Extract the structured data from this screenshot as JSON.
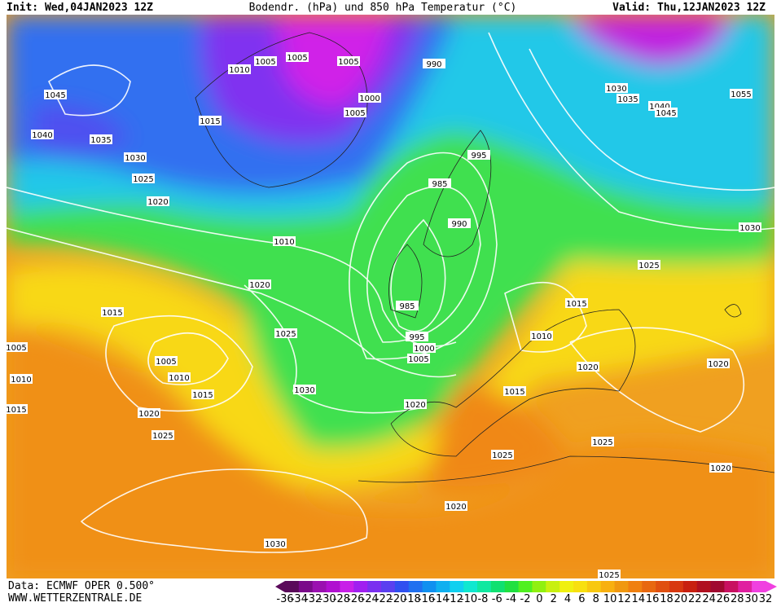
{
  "header": {
    "init": "Init: Wed,04JAN2023 12Z",
    "title": "Bodendr. (hPa) und 850 hPa Temperatur (°C)",
    "valid": "Valid: Thu,12JAN2023 12Z"
  },
  "isobar_labels": [
    "1045",
    "1040",
    "1035",
    "1030",
    "1025",
    "1020",
    "1005",
    "1010",
    "1005",
    "1015",
    "1005",
    "1005",
    "1000",
    "990",
    "995",
    "985",
    "990",
    "1010",
    "1020",
    "1025",
    "1030",
    "985",
    "995",
    "1000",
    "1005",
    "1020",
    "1015",
    "1010",
    "1020",
    "1015",
    "1020",
    "1025",
    "1020",
    "1025",
    "1030",
    "1035",
    "1040",
    "1045",
    "1055",
    "1030",
    "1025",
    "1015",
    "1010",
    "1005",
    "1015",
    "1005",
    "1010",
    "1015",
    "1020",
    "1025",
    "1030",
    "1020",
    "1025"
  ],
  "footer": {
    "source": "Data: ECMWF OPER 0.500°",
    "url": "WWW.WETTERZENTRALE.DE"
  },
  "colorbar": {
    "labels": [
      -36,
      -34,
      -32,
      -30,
      -28,
      -26,
      -24,
      -22,
      -20,
      -18,
      -16,
      -14,
      -12,
      -10,
      -8,
      -6,
      -4,
      -2,
      0,
      2,
      4,
      6,
      8,
      10,
      12,
      14,
      16,
      18,
      20,
      22,
      24,
      26,
      28,
      30,
      32
    ],
    "colors": [
      "#5a0a5a",
      "#7a0a8a",
      "#9a10b0",
      "#b010d0",
      "#c820e8",
      "#a020f0",
      "#7a30f0",
      "#5a40f0",
      "#3050f0",
      "#2070f0",
      "#1090f0",
      "#10b0f0",
      "#10d0f0",
      "#10e8d0",
      "#10e8a0",
      "#10e070",
      "#20e040",
      "#50f020",
      "#90f010",
      "#c8f010",
      "#f0f010",
      "#f8e010",
      "#f8c810",
      "#f8b010",
      "#f09810",
      "#f08010",
      "#e86810",
      "#e05010",
      "#d83810",
      "#c82010",
      "#b01020",
      "#a00830",
      "#c81060",
      "#e020a0",
      "#f040e0"
    ]
  }
}
